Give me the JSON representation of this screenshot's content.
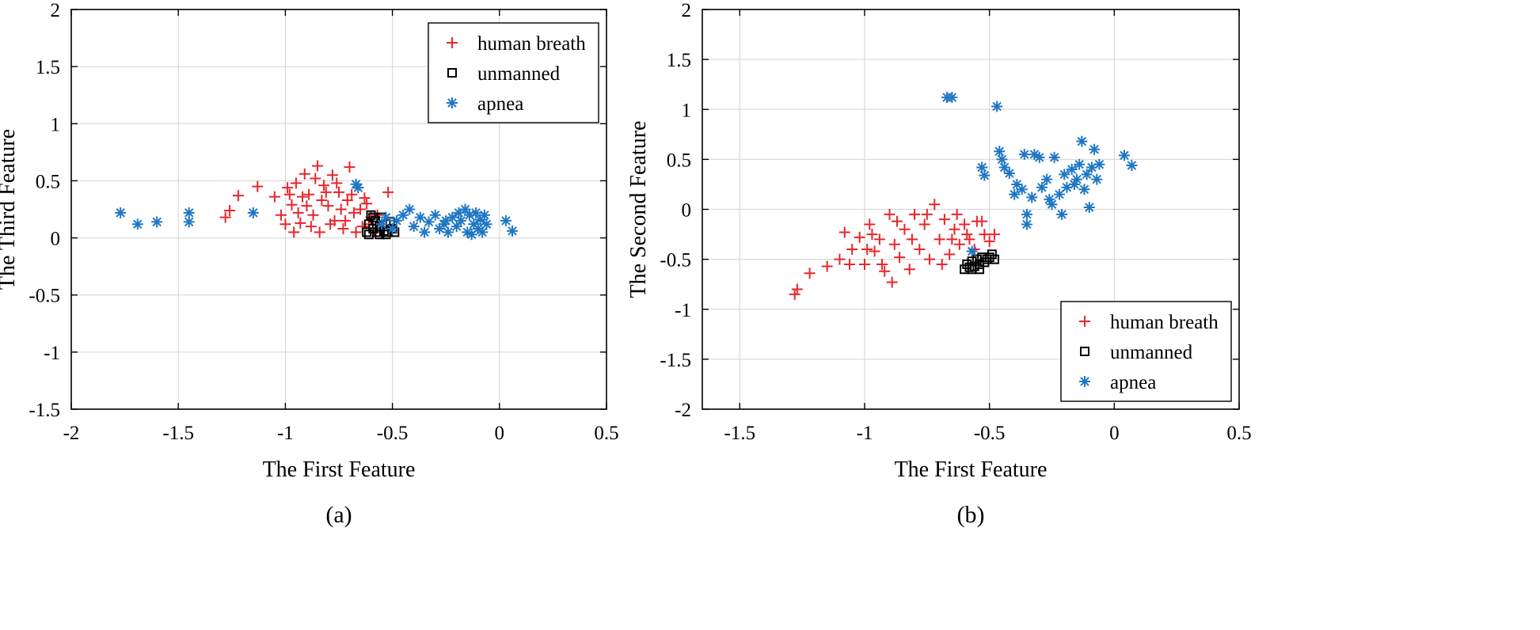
{
  "colors": {
    "human": "#e8262b",
    "unmanned": "#000000",
    "apnea": "#1f77c4",
    "grid": "#d4d4d4"
  },
  "chart_data": [
    {
      "type": "scatter",
      "panel_label": "(a)",
      "xlabel": "The First Feature",
      "ylabel": "The Third Feature",
      "xlim": [
        -2,
        0.5
      ],
      "ylim": [
        -1.5,
        2
      ],
      "xticks": [
        "-2",
        "-1.5",
        "-1",
        "-0.5",
        "0",
        "0.5"
      ],
      "yticks": [
        "-1.5",
        "-1",
        "-0.5",
        "0",
        "0.5",
        "1",
        "1.5",
        "2"
      ],
      "grid": true,
      "legend_position": "top-right",
      "legend": [
        "human breath",
        "unmanned",
        "apnea"
      ],
      "series": [
        {
          "name": "human breath",
          "marker": "plus",
          "points": [
            [
              -1.28,
              0.18
            ],
            [
              -1.26,
              0.24
            ],
            [
              -1.22,
              0.37
            ],
            [
              -1.13,
              0.45
            ],
            [
              -1.05,
              0.36
            ],
            [
              -1.02,
              0.2
            ],
            [
              -0.99,
              0.44
            ],
            [
              -0.97,
              0.29
            ],
            [
              -0.95,
              0.48
            ],
            [
              -0.93,
              0.13
            ],
            [
              -0.91,
              0.56
            ],
            [
              -0.89,
              0.38
            ],
            [
              -0.87,
              0.2
            ],
            [
              -0.85,
              0.63
            ],
            [
              -0.84,
              0.05
            ],
            [
              -0.82,
              0.46
            ],
            [
              -0.8,
              0.28
            ],
            [
              -0.78,
              0.55
            ],
            [
              -0.77,
              0.15
            ],
            [
              -0.75,
              0.4
            ],
            [
              -0.73,
              0.08
            ],
            [
              -0.71,
              0.33
            ],
            [
              -0.7,
              0.62
            ],
            [
              -0.68,
              0.22
            ],
            [
              -0.66,
              0.44
            ],
            [
              -0.64,
              0.1
            ],
            [
              -0.62,
              0.3
            ],
            [
              -0.6,
              0.18
            ],
            [
              -0.58,
              0.05
            ],
            [
              -0.52,
              0.4
            ],
            [
              -0.96,
              0.05
            ],
            [
              -0.92,
              0.36
            ],
            [
              -0.88,
              0.1
            ],
            [
              -0.86,
              0.52
            ],
            [
              -0.83,
              0.33
            ],
            [
              -0.79,
              0.12
            ],
            [
              -0.76,
              0.48
            ],
            [
              -0.74,
              0.25
            ],
            [
              -0.72,
              0.15
            ],
            [
              -0.69,
              0.38
            ],
            [
              -0.67,
              0.05
            ],
            [
              -0.65,
              0.25
            ],
            [
              -1.0,
              0.12
            ],
            [
              -0.98,
              0.38
            ],
            [
              -0.94,
              0.22
            ],
            [
              -0.9,
              0.28
            ],
            [
              -0.81,
              0.4
            ],
            [
              -0.63,
              0.35
            ],
            [
              -0.61,
              0.12
            ],
            [
              -0.57,
              0.2
            ]
          ]
        },
        {
          "name": "unmanned",
          "marker": "square",
          "points": [
            [
              -0.62,
              0.05
            ],
            [
              -0.61,
              0.12
            ],
            [
              -0.6,
              0.2
            ],
            [
              -0.59,
              0.08
            ],
            [
              -0.58,
              0.15
            ],
            [
              -0.57,
              0.05
            ],
            [
              -0.56,
              0.1
            ],
            [
              -0.55,
              0.18
            ],
            [
              -0.54,
              0.06
            ],
            [
              -0.53,
              0.12
            ],
            [
              -0.52,
              0.05
            ],
            [
              -0.51,
              0.14
            ],
            [
              -0.5,
              0.08
            ],
            [
              -0.49,
              0.05
            ],
            [
              -0.61,
              0.03
            ],
            [
              -0.59,
              0.18
            ],
            [
              -0.56,
              0.03
            ],
            [
              -0.53,
              0.03
            ]
          ]
        },
        {
          "name": "apnea",
          "marker": "asterisk",
          "points": [
            [
              -1.77,
              0.22
            ],
            [
              -1.69,
              0.12
            ],
            [
              -1.6,
              0.14
            ],
            [
              -1.45,
              0.22
            ],
            [
              -1.45,
              0.14
            ],
            [
              -1.15,
              0.22
            ],
            [
              -0.67,
              0.47
            ],
            [
              -0.66,
              0.44
            ],
            [
              -0.55,
              0.12
            ],
            [
              -0.53,
              0.18
            ],
            [
              -0.5,
              0.08
            ],
            [
              -0.48,
              0.15
            ],
            [
              -0.45,
              0.2
            ],
            [
              -0.42,
              0.25
            ],
            [
              -0.4,
              0.1
            ],
            [
              -0.37,
              0.18
            ],
            [
              -0.35,
              0.05
            ],
            [
              -0.33,
              0.14
            ],
            [
              -0.3,
              0.2
            ],
            [
              -0.28,
              0.08
            ],
            [
              -0.26,
              0.12
            ],
            [
              -0.24,
              0.05
            ],
            [
              -0.22,
              0.18
            ],
            [
              -0.2,
              0.1
            ],
            [
              -0.18,
              0.15
            ],
            [
              -0.16,
              0.25
            ],
            [
              -0.15,
              0.05
            ],
            [
              -0.14,
              0.2
            ],
            [
              -0.12,
              0.12
            ],
            [
              -0.11,
              0.22
            ],
            [
              -0.1,
              0.08
            ],
            [
              -0.09,
              0.16
            ],
            [
              -0.08,
              0.05
            ],
            [
              -0.07,
              0.2
            ],
            [
              -0.06,
              0.12
            ],
            [
              0.03,
              0.15
            ],
            [
              0.06,
              0.06
            ],
            [
              -0.13,
              0.03
            ],
            [
              -0.19,
              0.22
            ],
            [
              -0.25,
              0.15
            ]
          ]
        }
      ]
    },
    {
      "type": "scatter",
      "panel_label": "(b)",
      "xlabel": "The First Feature",
      "ylabel": "The Second Feature",
      "xlim": [
        -1.65,
        0.5
      ],
      "ylim": [
        -2,
        2
      ],
      "xticks": [
        "-1.5",
        "-1",
        "-0.5",
        "0",
        "0.5"
      ],
      "yticks": [
        "-2",
        "-1.5",
        "-1",
        "-0.5",
        "0",
        "0.5",
        "1",
        "1.5",
        "2"
      ],
      "grid": true,
      "legend_position": "bottom-right",
      "legend": [
        "human breath",
        "unmanned",
        "apnea"
      ],
      "series": [
        {
          "name": "human breath",
          "marker": "plus",
          "points": [
            [
              -1.28,
              -0.85
            ],
            [
              -1.27,
              -0.8
            ],
            [
              -1.22,
              -0.64
            ],
            [
              -1.15,
              -0.57
            ],
            [
              -1.1,
              -0.5
            ],
            [
              -1.08,
              -0.23
            ],
            [
              -1.05,
              -0.4
            ],
            [
              -1.02,
              -0.28
            ],
            [
              -1.0,
              -0.55
            ],
            [
              -0.98,
              -0.15
            ],
            [
              -0.96,
              -0.42
            ],
            [
              -0.94,
              -0.3
            ],
            [
              -0.92,
              -0.62
            ],
            [
              -0.9,
              -0.05
            ],
            [
              -0.89,
              -0.73
            ],
            [
              -0.88,
              -0.35
            ],
            [
              -0.86,
              -0.48
            ],
            [
              -0.84,
              -0.2
            ],
            [
              -0.82,
              -0.6
            ],
            [
              -0.8,
              -0.05
            ],
            [
              -0.78,
              -0.4
            ],
            [
              -0.76,
              -0.15
            ],
            [
              -0.74,
              -0.5
            ],
            [
              -0.72,
              0.05
            ],
            [
              -0.7,
              -0.3
            ],
            [
              -0.68,
              -0.1
            ],
            [
              -0.66,
              -0.45
            ],
            [
              -0.64,
              -0.2
            ],
            [
              -0.62,
              -0.35
            ],
            [
              -0.6,
              -0.15
            ],
            [
              -0.58,
              -0.3
            ],
            [
              -0.56,
              -0.4
            ],
            [
              -0.55,
              -0.12
            ],
            [
              -0.52,
              -0.25
            ],
            [
              -0.5,
              -0.32
            ],
            [
              -0.48,
              -0.25
            ],
            [
              -1.06,
              -0.55
            ],
            [
              -0.99,
              -0.4
            ],
            [
              -0.93,
              -0.55
            ],
            [
              -0.87,
              -0.12
            ],
            [
              -0.81,
              -0.3
            ],
            [
              -0.75,
              -0.05
            ],
            [
              -0.69,
              -0.55
            ],
            [
              -0.65,
              -0.3
            ],
            [
              -0.63,
              -0.05
            ],
            [
              -0.59,
              -0.25
            ],
            [
              -0.53,
              -0.12
            ],
            [
              -0.97,
              -0.25
            ]
          ]
        },
        {
          "name": "unmanned",
          "marker": "square",
          "points": [
            [
              -0.6,
              -0.6
            ],
            [
              -0.59,
              -0.55
            ],
            [
              -0.58,
              -0.58
            ],
            [
              -0.57,
              -0.52
            ],
            [
              -0.56,
              -0.57
            ],
            [
              -0.55,
              -0.5
            ],
            [
              -0.54,
              -0.55
            ],
            [
              -0.53,
              -0.48
            ],
            [
              -0.52,
              -0.53
            ],
            [
              -0.51,
              -0.5
            ],
            [
              -0.5,
              -0.48
            ],
            [
              -0.48,
              -0.5
            ],
            [
              -0.57,
              -0.6
            ],
            [
              -0.54,
              -0.6
            ],
            [
              -0.49,
              -0.45
            ]
          ]
        },
        {
          "name": "apnea",
          "marker": "asterisk",
          "points": [
            [
              -0.67,
              1.12
            ],
            [
              -0.65,
              1.12
            ],
            [
              -0.47,
              1.03
            ],
            [
              -0.57,
              -0.42
            ],
            [
              -0.53,
              0.42
            ],
            [
              -0.52,
              0.34
            ],
            [
              -0.46,
              0.58
            ],
            [
              -0.45,
              0.5
            ],
            [
              -0.44,
              0.42
            ],
            [
              -0.42,
              0.36
            ],
            [
              -0.4,
              0.15
            ],
            [
              -0.39,
              0.25
            ],
            [
              -0.37,
              0.2
            ],
            [
              -0.36,
              0.55
            ],
            [
              -0.35,
              -0.05
            ],
            [
              -0.35,
              -0.15
            ],
            [
              -0.33,
              0.12
            ],
            [
              -0.32,
              0.55
            ],
            [
              -0.3,
              0.52
            ],
            [
              -0.29,
              0.22
            ],
            [
              -0.27,
              0.3
            ],
            [
              -0.25,
              0.05
            ],
            [
              -0.24,
              0.52
            ],
            [
              -0.22,
              0.15
            ],
            [
              -0.21,
              -0.05
            ],
            [
              -0.2,
              0.35
            ],
            [
              -0.19,
              0.22
            ],
            [
              -0.17,
              0.4
            ],
            [
              -0.15,
              0.3
            ],
            [
              -0.14,
              0.45
            ],
            [
              -0.13,
              0.68
            ],
            [
              -0.12,
              0.2
            ],
            [
              -0.11,
              0.35
            ],
            [
              -0.1,
              0.02
            ],
            [
              -0.09,
              0.42
            ],
            [
              -0.08,
              0.6
            ],
            [
              -0.07,
              0.3
            ],
            [
              -0.06,
              0.45
            ],
            [
              0.04,
              0.54
            ],
            [
              0.07,
              0.44
            ],
            [
              -0.26,
              0.1
            ],
            [
              -0.16,
              0.25
            ]
          ]
        }
      ]
    }
  ]
}
